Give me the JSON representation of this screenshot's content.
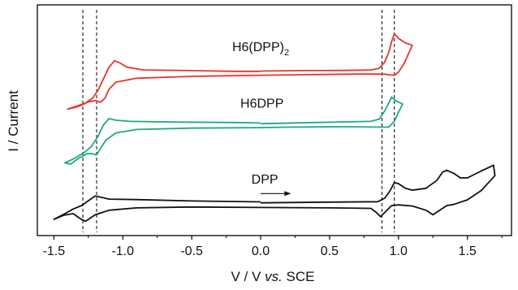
{
  "chart_data": {
    "type": "line",
    "xlabel": {
      "pre": "V / V ",
      "italic": "vs.",
      "post": " SCE"
    },
    "ylabel": "I / Current",
    "xlim": [
      -1.62,
      1.82
    ],
    "xticks": [
      -1.5,
      -1.0,
      -0.5,
      0.0,
      0.5,
      1.0,
      1.5
    ],
    "xtick_labels": [
      "-1.5",
      "-1.0",
      "-0.5",
      "0.0",
      "0.5",
      "1.0",
      "1.5"
    ],
    "ylim": [
      0,
      10
    ],
    "y_ticks_shown": false,
    "grid": false,
    "legend": "none",
    "reference_lines_x": [
      -1.29,
      -1.19,
      0.88,
      0.97
    ],
    "scan_arrow": {
      "from": 0.0,
      "to": 0.22,
      "y": 1.82
    },
    "series": [
      {
        "name": "H6(DPP)2",
        "label_parts": {
          "main": "H6(DPP)",
          "sub": "2"
        },
        "label_x": 0.0,
        "label_y": 8.0,
        "color": "#e8352a",
        "points": [
          [
            0.0,
            7.13
          ],
          [
            0.3,
            7.15
          ],
          [
            0.6,
            7.16
          ],
          [
            0.8,
            7.18
          ],
          [
            0.86,
            7.25
          ],
          [
            0.9,
            7.52
          ],
          [
            0.93,
            7.95
          ],
          [
            0.95,
            8.4
          ],
          [
            0.97,
            8.75
          ],
          [
            1.0,
            8.55
          ],
          [
            1.05,
            8.35
          ],
          [
            1.1,
            8.25
          ],
          [
            1.07,
            7.85
          ],
          [
            1.04,
            7.45
          ],
          [
            1.0,
            7.08
          ],
          [
            0.97,
            6.95
          ],
          [
            0.93,
            6.97
          ],
          [
            0.9,
            7.0
          ],
          [
            0.7,
            7.0
          ],
          [
            0.4,
            6.98
          ],
          [
            0.0,
            6.95
          ],
          [
            -0.5,
            6.9
          ],
          [
            -0.9,
            6.82
          ],
          [
            -1.05,
            6.65
          ],
          [
            -1.1,
            6.35
          ],
          [
            -1.13,
            5.95
          ],
          [
            -1.16,
            5.78
          ],
          [
            -1.2,
            5.85
          ],
          [
            -1.25,
            5.8
          ],
          [
            -1.3,
            5.65
          ],
          [
            -1.35,
            5.55
          ],
          [
            -1.4,
            5.48
          ],
          [
            -1.33,
            5.62
          ],
          [
            -1.27,
            5.75
          ],
          [
            -1.22,
            5.95
          ],
          [
            -1.18,
            6.3
          ],
          [
            -1.14,
            6.8
          ],
          [
            -1.1,
            7.3
          ],
          [
            -1.06,
            7.58
          ],
          [
            -1.02,
            7.48
          ],
          [
            -0.97,
            7.3
          ],
          [
            -0.85,
            7.18
          ],
          [
            -0.5,
            7.15
          ],
          [
            -0.2,
            7.12
          ],
          [
            0.0,
            7.12
          ]
        ]
      },
      {
        "name": "H6DPP",
        "label_x": 0.01,
        "label_y": 5.55,
        "color": "#1aaa88",
        "points": [
          [
            0.0,
            4.85
          ],
          [
            0.4,
            4.9
          ],
          [
            0.8,
            4.95
          ],
          [
            0.86,
            5.05
          ],
          [
            0.9,
            5.4
          ],
          [
            0.93,
            5.75
          ],
          [
            0.95,
            6.0
          ],
          [
            0.98,
            5.85
          ],
          [
            1.03,
            5.7
          ],
          [
            1.0,
            5.35
          ],
          [
            0.97,
            4.95
          ],
          [
            0.93,
            4.7
          ],
          [
            0.9,
            4.7
          ],
          [
            0.6,
            4.72
          ],
          [
            0.2,
            4.7
          ],
          [
            0.0,
            4.68
          ],
          [
            -0.5,
            4.66
          ],
          [
            -0.9,
            4.6
          ],
          [
            -1.05,
            4.45
          ],
          [
            -1.12,
            4.15
          ],
          [
            -1.16,
            3.8
          ],
          [
            -1.19,
            3.5
          ],
          [
            -1.22,
            3.55
          ],
          [
            -1.26,
            3.55
          ],
          [
            -1.32,
            3.35
          ],
          [
            -1.38,
            3.1
          ],
          [
            -1.42,
            3.15
          ],
          [
            -1.35,
            3.35
          ],
          [
            -1.28,
            3.6
          ],
          [
            -1.23,
            3.85
          ],
          [
            -1.18,
            4.3
          ],
          [
            -1.14,
            4.8
          ],
          [
            -1.1,
            5.07
          ],
          [
            -1.05,
            5.0
          ],
          [
            -0.95,
            4.95
          ],
          [
            -0.6,
            4.92
          ],
          [
            -0.2,
            4.9
          ],
          [
            0.0,
            4.88
          ]
        ]
      },
      {
        "name": "DPP",
        "label_x": 0.03,
        "label_y": 2.25,
        "color": "#111111",
        "points": [
          [
            0.0,
            1.42
          ],
          [
            0.5,
            1.45
          ],
          [
            0.85,
            1.47
          ],
          [
            0.9,
            1.62
          ],
          [
            0.94,
            1.95
          ],
          [
            0.97,
            2.3
          ],
          [
            1.0,
            2.25
          ],
          [
            1.05,
            2.05
          ],
          [
            1.1,
            1.97
          ],
          [
            1.2,
            2.05
          ],
          [
            1.28,
            2.4
          ],
          [
            1.32,
            2.75
          ],
          [
            1.35,
            2.83
          ],
          [
            1.4,
            2.7
          ],
          [
            1.45,
            2.5
          ],
          [
            1.5,
            2.5
          ],
          [
            1.6,
            2.8
          ],
          [
            1.69,
            3.05
          ],
          [
            1.7,
            2.6
          ],
          [
            1.6,
            1.95
          ],
          [
            1.5,
            1.55
          ],
          [
            1.4,
            1.35
          ],
          [
            1.35,
            1.3
          ],
          [
            1.3,
            1.1
          ],
          [
            1.25,
            0.9
          ],
          [
            1.2,
            1.1
          ],
          [
            1.1,
            1.28
          ],
          [
            1.0,
            1.33
          ],
          [
            0.95,
            1.3
          ],
          [
            0.9,
            1.0
          ],
          [
            0.87,
            0.82
          ],
          [
            0.84,
            1.0
          ],
          [
            0.8,
            1.18
          ],
          [
            0.5,
            1.2
          ],
          [
            0.0,
            1.22
          ],
          [
            -0.5,
            1.24
          ],
          [
            -0.9,
            1.2
          ],
          [
            -1.1,
            1.1
          ],
          [
            -1.2,
            0.9
          ],
          [
            -1.27,
            0.62
          ],
          [
            -1.3,
            0.7
          ],
          [
            -1.36,
            0.95
          ],
          [
            -1.43,
            0.88
          ],
          [
            -1.5,
            0.7
          ],
          [
            -1.42,
            0.95
          ],
          [
            -1.36,
            1.15
          ],
          [
            -1.3,
            1.3
          ],
          [
            -1.24,
            1.55
          ],
          [
            -1.2,
            1.72
          ],
          [
            -1.15,
            1.65
          ],
          [
            -1.1,
            1.58
          ],
          [
            -0.9,
            1.56
          ],
          [
            -0.5,
            1.5
          ],
          [
            0.0,
            1.46
          ]
        ]
      }
    ]
  }
}
